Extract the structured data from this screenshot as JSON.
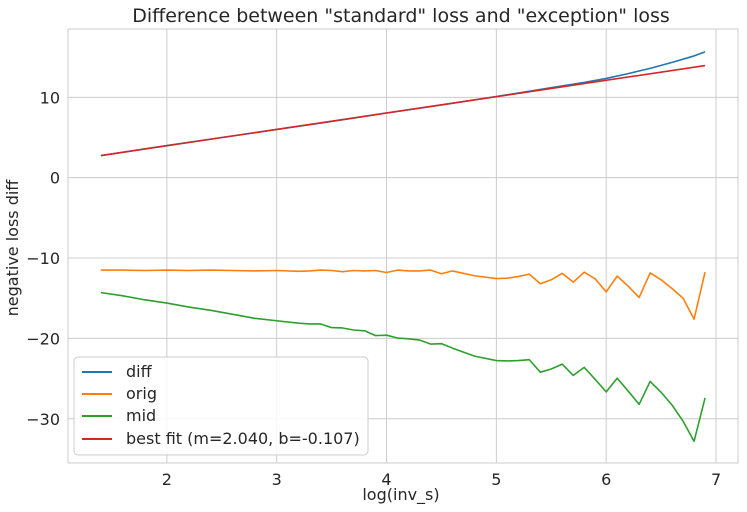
{
  "chart_data": {
    "type": "line",
    "title": "Difference between \"standard\" loss and \"exception\" loss",
    "xlabel": "log(inv_s)",
    "ylabel": "negative loss diff",
    "xlim": [
      1.1,
      7.2
    ],
    "ylim": [
      -35.5,
      18.5
    ],
    "xticks": [
      2,
      3,
      4,
      5,
      6,
      7
    ],
    "yticks": [
      -30,
      -20,
      -10,
      0,
      10
    ],
    "grid": true,
    "legend_position": "bottom-left",
    "series": [
      {
        "name": "diff",
        "color": "#1f77b4",
        "x": [
          1.4,
          2.0,
          2.5,
          3.0,
          3.5,
          4.0,
          4.5,
          5.0,
          5.5,
          5.8,
          6.0,
          6.2,
          6.4,
          6.6,
          6.8,
          6.9
        ],
        "y": [
          2.75,
          4.0,
          5.0,
          6.0,
          7.0,
          8.05,
          9.05,
          10.1,
          11.2,
          11.85,
          12.35,
          12.95,
          13.6,
          14.35,
          15.15,
          15.65
        ]
      },
      {
        "name": "orig",
        "color": "#ff7f0e",
        "x": [
          1.4,
          1.6,
          1.8,
          2.0,
          2.2,
          2.4,
          2.6,
          2.8,
          3.0,
          3.2,
          3.3,
          3.4,
          3.5,
          3.6,
          3.7,
          3.8,
          3.9,
          4.0,
          4.1,
          4.2,
          4.3,
          4.4,
          4.5,
          4.6,
          4.8,
          5.0,
          5.1,
          5.2,
          5.3,
          5.4,
          5.5,
          5.6,
          5.7,
          5.8,
          5.9,
          6.0,
          6.1,
          6.2,
          6.3,
          6.4,
          6.5,
          6.6,
          6.7,
          6.8,
          6.9
        ],
        "y": [
          -11.5,
          -11.5,
          -11.55,
          -11.5,
          -11.55,
          -11.5,
          -11.55,
          -11.6,
          -11.55,
          -11.65,
          -11.6,
          -11.5,
          -11.55,
          -11.7,
          -11.55,
          -11.6,
          -11.55,
          -11.8,
          -11.5,
          -11.6,
          -11.6,
          -11.5,
          -11.95,
          -11.6,
          -12.2,
          -12.55,
          -12.5,
          -12.3,
          -12.0,
          -13.2,
          -12.7,
          -11.9,
          -13.0,
          -11.75,
          -12.6,
          -14.2,
          -12.25,
          -13.5,
          -14.9,
          -11.85,
          -12.7,
          -13.8,
          -15.0,
          -17.6,
          -11.75
        ]
      },
      {
        "name": "mid",
        "color": "#2ca02c",
        "x": [
          1.4,
          1.6,
          1.8,
          2.0,
          2.2,
          2.4,
          2.6,
          2.8,
          3.0,
          3.2,
          3.3,
          3.4,
          3.5,
          3.6,
          3.7,
          3.8,
          3.9,
          4.0,
          4.1,
          4.2,
          4.3,
          4.4,
          4.5,
          4.6,
          4.8,
          5.0,
          5.1,
          5.2,
          5.3,
          5.4,
          5.5,
          5.6,
          5.7,
          5.8,
          5.9,
          6.0,
          6.1,
          6.2,
          6.3,
          6.4,
          6.5,
          6.6,
          6.7,
          6.8,
          6.9
        ],
        "y": [
          -14.3,
          -14.7,
          -15.2,
          -15.6,
          -16.1,
          -16.5,
          -17.0,
          -17.5,
          -17.8,
          -18.1,
          -18.2,
          -18.2,
          -18.65,
          -18.7,
          -18.95,
          -19.05,
          -19.65,
          -19.6,
          -19.95,
          -20.05,
          -20.2,
          -20.7,
          -20.65,
          -21.2,
          -22.2,
          -22.75,
          -22.8,
          -22.75,
          -22.65,
          -24.2,
          -23.8,
          -23.2,
          -24.6,
          -23.6,
          -25.1,
          -26.65,
          -24.95,
          -26.55,
          -28.2,
          -25.35,
          -26.7,
          -28.3,
          -30.3,
          -32.8,
          -27.4
        ]
      },
      {
        "name": "best fit (m=2.040, b=-0.107)",
        "color": "#d62728",
        "x": [
          1.4,
          6.9
        ],
        "y": [
          2.75,
          13.95
        ]
      }
    ]
  }
}
